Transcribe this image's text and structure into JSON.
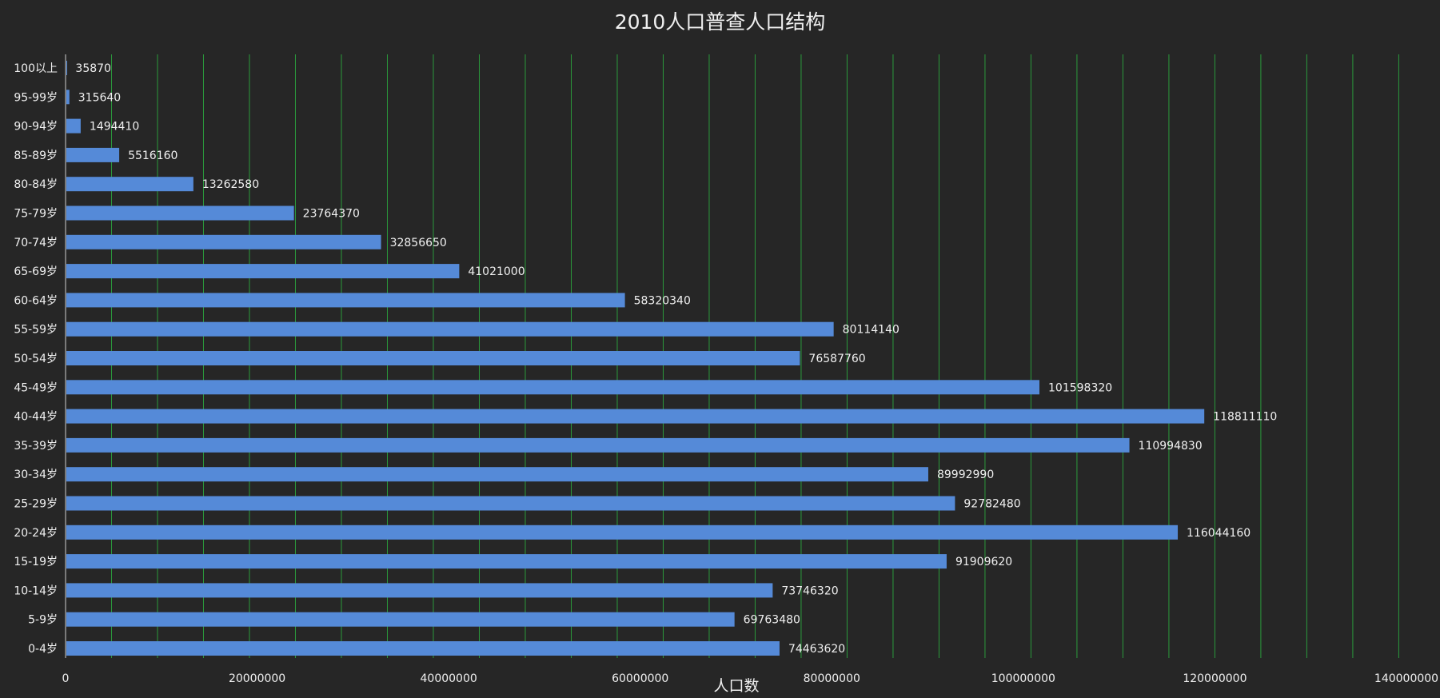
{
  "chart_data": {
    "type": "bar",
    "orientation": "horizontal",
    "title": "2010人口普查人口结构",
    "xlabel": "人口数",
    "ylabel": "",
    "xlim": [
      0,
      140000000
    ],
    "major_ticks": [
      0,
      20000000,
      40000000,
      60000000,
      80000000,
      100000000,
      120000000,
      140000000
    ],
    "minor_tick_step": 4800000,
    "grid": true,
    "legend": "none",
    "categories": [
      "0-4岁",
      "5-9岁",
      "10-14岁",
      "15-19岁",
      "20-24岁",
      "25-29岁",
      "30-34岁",
      "35-39岁",
      "40-44岁",
      "45-49岁",
      "50-54岁",
      "55-59岁",
      "60-64岁",
      "65-69岁",
      "70-74岁",
      "75-79岁",
      "80-84岁",
      "85-89岁",
      "90-94岁",
      "95-99岁",
      "100以上"
    ],
    "values": [
      74463620,
      69763480,
      73746320,
      91909620,
      116044160,
      92782480,
      89992990,
      110994830,
      118811110,
      101598320,
      76587760,
      80114140,
      58320340,
      41021000,
      32856650,
      23764370,
      13262580,
      5516160,
      1494410,
      315640,
      35870
    ]
  },
  "colors": {
    "background": "#262626",
    "bar": "#558ad8",
    "grid": "#2a9a3c",
    "text": "#f0f0f0",
    "axis": "#cfcfcf"
  }
}
